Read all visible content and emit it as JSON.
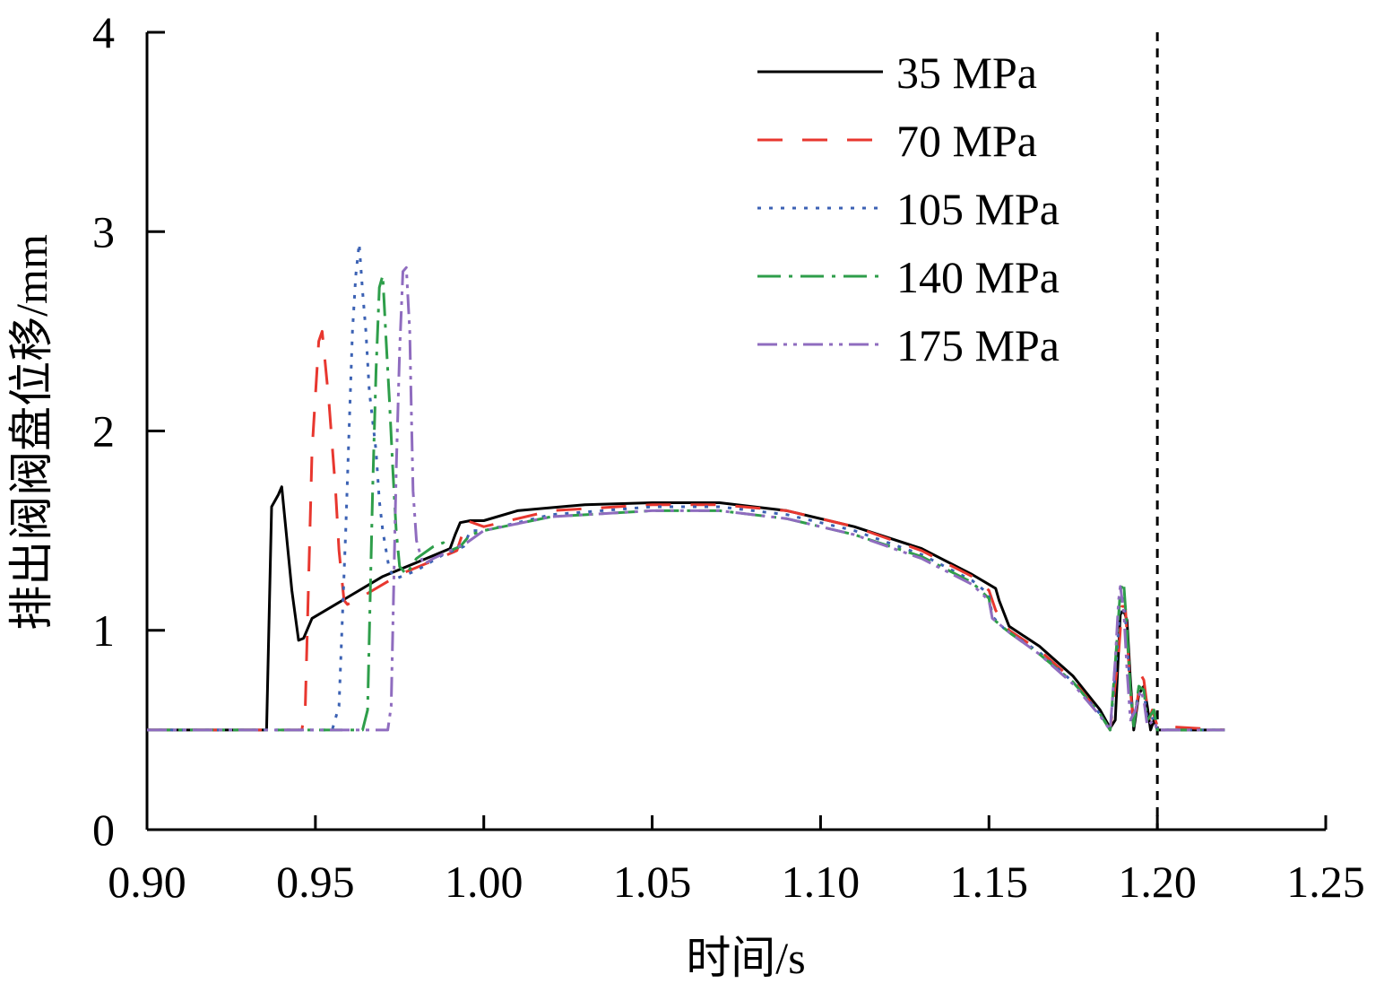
{
  "chart_data": {
    "type": "line",
    "title": "",
    "xlabel": "时间/s",
    "ylabel": "排出阀阀盘位移/mm",
    "xlim": [
      0.9,
      1.25
    ],
    "ylim": [
      0,
      4
    ],
    "xticks": [
      "0.90",
      "0.95",
      "1.00",
      "1.05",
      "1.10",
      "1.15",
      "1.20",
      "1.25"
    ],
    "yticks": [
      "0",
      "1",
      "2",
      "3",
      "4"
    ],
    "grid": false,
    "legend_position": "top-right",
    "reference_line_x": 1.2,
    "series": [
      {
        "name": "35 MPa",
        "color": "#000000",
        "dash": "solid",
        "points": [
          [
            0.9,
            0.5
          ],
          [
            0.935,
            0.5
          ],
          [
            0.9355,
            0.5
          ],
          [
            0.937,
            1.62
          ],
          [
            0.939,
            1.68
          ],
          [
            0.94,
            1.72
          ],
          [
            0.941,
            1.55
          ],
          [
            0.943,
            1.2
          ],
          [
            0.945,
            0.95
          ],
          [
            0.9465,
            0.96
          ],
          [
            0.949,
            1.06
          ],
          [
            0.96,
            1.17
          ],
          [
            0.97,
            1.27
          ],
          [
            0.98,
            1.34
          ],
          [
            0.99,
            1.41
          ],
          [
            0.9915,
            1.48
          ],
          [
            0.993,
            1.54
          ],
          [
            0.996,
            1.55
          ],
          [
            1.0,
            1.55
          ],
          [
            1.01,
            1.6
          ],
          [
            1.03,
            1.63
          ],
          [
            1.05,
            1.64
          ],
          [
            1.07,
            1.64
          ],
          [
            1.09,
            1.6
          ],
          [
            1.11,
            1.52
          ],
          [
            1.13,
            1.41
          ],
          [
            1.145,
            1.28
          ],
          [
            1.152,
            1.21
          ],
          [
            1.153,
            1.15
          ],
          [
            1.156,
            1.02
          ],
          [
            1.165,
            0.92
          ],
          [
            1.175,
            0.77
          ],
          [
            1.183,
            0.6
          ],
          [
            1.186,
            0.51
          ],
          [
            1.1875,
            0.55
          ],
          [
            1.1885,
            0.9
          ],
          [
            1.189,
            1.08
          ],
          [
            1.19,
            1.1
          ],
          [
            1.191,
            1.05
          ],
          [
            1.192,
            0.75
          ],
          [
            1.193,
            0.5
          ],
          [
            1.1945,
            0.68
          ],
          [
            1.196,
            0.72
          ],
          [
            1.197,
            0.62
          ],
          [
            1.198,
            0.5
          ],
          [
            1.199,
            0.55
          ],
          [
            1.2,
            0.5
          ],
          [
            1.22,
            0.5
          ]
        ]
      },
      {
        "name": "70 MPa",
        "color": "#e8372f",
        "dash": "long-dash",
        "points": [
          [
            0.9,
            0.5
          ],
          [
            0.946,
            0.5
          ],
          [
            0.947,
            0.62
          ],
          [
            0.949,
            1.9
          ],
          [
            0.951,
            2.45
          ],
          [
            0.952,
            2.5
          ],
          [
            0.954,
            2.15
          ],
          [
            0.956,
            1.7
          ],
          [
            0.957,
            1.4
          ],
          [
            0.9585,
            1.15
          ],
          [
            0.9595,
            1.13
          ],
          [
            0.965,
            1.18
          ],
          [
            0.975,
            1.28
          ],
          [
            0.985,
            1.35
          ],
          [
            0.992,
            1.4
          ],
          [
            0.995,
            1.55
          ],
          [
            1.0,
            1.52
          ],
          [
            1.02,
            1.6
          ],
          [
            1.05,
            1.63
          ],
          [
            1.07,
            1.63
          ],
          [
            1.09,
            1.6
          ],
          [
            1.11,
            1.52
          ],
          [
            1.13,
            1.4
          ],
          [
            1.145,
            1.27
          ],
          [
            1.15,
            1.2
          ],
          [
            1.152,
            1.1
          ],
          [
            1.156,
            1.0
          ],
          [
            1.165,
            0.9
          ],
          [
            1.175,
            0.75
          ],
          [
            1.183,
            0.58
          ],
          [
            1.186,
            0.5
          ],
          [
            1.1885,
            0.88
          ],
          [
            1.1895,
            1.12
          ],
          [
            1.1905,
            1.12
          ],
          [
            1.191,
            0.98
          ],
          [
            1.192,
            0.7
          ],
          [
            1.193,
            0.52
          ],
          [
            1.1945,
            0.7
          ],
          [
            1.195,
            0.78
          ],
          [
            1.196,
            0.75
          ],
          [
            1.1975,
            0.55
          ],
          [
            1.1985,
            0.6
          ],
          [
            1.2,
            0.52
          ],
          [
            1.22,
            0.5
          ]
        ]
      },
      {
        "name": "105 MPa",
        "color": "#3c62b4",
        "dash": "dotted",
        "points": [
          [
            0.9,
            0.5
          ],
          [
            0.955,
            0.5
          ],
          [
            0.957,
            0.62
          ],
          [
            0.959,
            1.5
          ],
          [
            0.96,
            2.0
          ],
          [
            0.961,
            2.5
          ],
          [
            0.962,
            2.78
          ],
          [
            0.963,
            2.94
          ],
          [
            0.964,
            2.7
          ],
          [
            0.965,
            2.5
          ],
          [
            0.966,
            2.2
          ],
          [
            0.968,
            1.9
          ],
          [
            0.969,
            1.65
          ],
          [
            0.97,
            1.5
          ],
          [
            0.972,
            1.3
          ],
          [
            0.974,
            1.26
          ],
          [
            0.98,
            1.3
          ],
          [
            0.988,
            1.38
          ],
          [
            0.994,
            1.42
          ],
          [
            0.996,
            1.5
          ],
          [
            1.0,
            1.5
          ],
          [
            1.02,
            1.58
          ],
          [
            1.05,
            1.62
          ],
          [
            1.07,
            1.62
          ],
          [
            1.09,
            1.58
          ],
          [
            1.11,
            1.5
          ],
          [
            1.13,
            1.38
          ],
          [
            1.145,
            1.25
          ],
          [
            1.15,
            1.18
          ],
          [
            1.151,
            1.07
          ],
          [
            1.155,
            1.0
          ],
          [
            1.165,
            0.89
          ],
          [
            1.175,
            0.74
          ],
          [
            1.183,
            0.58
          ],
          [
            1.186,
            0.5
          ],
          [
            1.188,
            0.88
          ],
          [
            1.189,
            1.15
          ],
          [
            1.19,
            1.18
          ],
          [
            1.191,
            0.95
          ],
          [
            1.192,
            0.68
          ],
          [
            1.193,
            0.52
          ],
          [
            1.1945,
            0.72
          ],
          [
            1.196,
            0.7
          ],
          [
            1.197,
            0.55
          ],
          [
            1.199,
            0.56
          ],
          [
            1.2,
            0.5
          ],
          [
            1.22,
            0.5
          ]
        ]
      },
      {
        "name": "140 MPa",
        "color": "#2e9e4a",
        "dash": "dash-dot",
        "points": [
          [
            0.9,
            0.5
          ],
          [
            0.964,
            0.5
          ],
          [
            0.9655,
            0.6
          ],
          [
            0.967,
            1.7
          ],
          [
            0.968,
            2.3
          ],
          [
            0.969,
            2.72
          ],
          [
            0.97,
            2.78
          ],
          [
            0.971,
            2.45
          ],
          [
            0.972,
            2.15
          ],
          [
            0.973,
            1.8
          ],
          [
            0.974,
            1.5
          ],
          [
            0.975,
            1.32
          ],
          [
            0.977,
            1.28
          ],
          [
            0.98,
            1.36
          ],
          [
            0.985,
            1.42
          ],
          [
            0.988,
            1.44
          ],
          [
            0.99,
            1.4
          ],
          [
            0.993,
            1.42
          ],
          [
            0.996,
            1.48
          ],
          [
            1.0,
            1.5
          ],
          [
            1.02,
            1.57
          ],
          [
            1.05,
            1.6
          ],
          [
            1.07,
            1.6
          ],
          [
            1.09,
            1.56
          ],
          [
            1.11,
            1.48
          ],
          [
            1.13,
            1.37
          ],
          [
            1.145,
            1.24
          ],
          [
            1.15,
            1.16
          ],
          [
            1.151,
            1.06
          ],
          [
            1.156,
            0.99
          ],
          [
            1.165,
            0.88
          ],
          [
            1.175,
            0.74
          ],
          [
            1.183,
            0.58
          ],
          [
            1.186,
            0.5
          ],
          [
            1.188,
            0.95
          ],
          [
            1.189,
            1.2
          ],
          [
            1.19,
            1.24
          ],
          [
            1.191,
            1.0
          ],
          [
            1.192,
            0.7
          ],
          [
            1.193,
            0.52
          ],
          [
            1.1945,
            0.72
          ],
          [
            1.196,
            0.7
          ],
          [
            1.197,
            0.55
          ],
          [
            1.199,
            0.6
          ],
          [
            1.2,
            0.5
          ],
          [
            1.22,
            0.5
          ]
        ]
      },
      {
        "name": "175 MPa",
        "color": "#8f6cbf",
        "dash": "dash-dot-dot",
        "points": [
          [
            0.9,
            0.5
          ],
          [
            0.9715,
            0.5
          ],
          [
            0.9725,
            0.62
          ],
          [
            0.974,
            1.8
          ],
          [
            0.975,
            2.4
          ],
          [
            0.976,
            2.8
          ],
          [
            0.977,
            2.82
          ],
          [
            0.978,
            2.5
          ],
          [
            0.9785,
            2.1
          ],
          [
            0.979,
            1.7
          ],
          [
            0.98,
            1.45
          ],
          [
            0.982,
            1.33
          ],
          [
            0.985,
            1.36
          ],
          [
            0.99,
            1.4
          ],
          [
            0.995,
            1.44
          ],
          [
            1.0,
            1.5
          ],
          [
            1.02,
            1.57
          ],
          [
            1.05,
            1.6
          ],
          [
            1.07,
            1.6
          ],
          [
            1.09,
            1.56
          ],
          [
            1.11,
            1.48
          ],
          [
            1.13,
            1.36
          ],
          [
            1.145,
            1.23
          ],
          [
            1.15,
            1.15
          ],
          [
            1.151,
            1.06
          ],
          [
            1.156,
            0.99
          ],
          [
            1.165,
            0.88
          ],
          [
            1.175,
            0.73
          ],
          [
            1.183,
            0.57
          ],
          [
            1.186,
            0.5
          ],
          [
            1.1875,
            0.85
          ],
          [
            1.1885,
            1.15
          ],
          [
            1.189,
            1.22
          ],
          [
            1.19,
            1.1
          ],
          [
            1.191,
            0.8
          ],
          [
            1.192,
            0.55
          ],
          [
            1.1935,
            0.6
          ],
          [
            1.195,
            0.7
          ],
          [
            1.196,
            0.65
          ],
          [
            1.197,
            0.52
          ],
          [
            1.199,
            0.55
          ],
          [
            1.2,
            0.5
          ],
          [
            1.22,
            0.5
          ]
        ]
      }
    ]
  }
}
